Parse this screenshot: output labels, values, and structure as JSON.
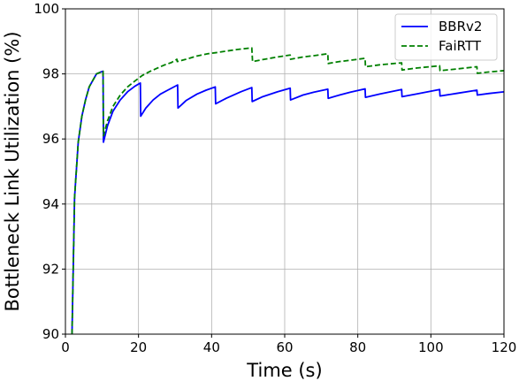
{
  "chart_data": {
    "type": "line",
    "xlabel": "Time (s)",
    "ylabel": "Bottleneck Link Utilization (%)",
    "xlim": [
      0,
      120
    ],
    "ylim": [
      90,
      100
    ],
    "xticks": [
      0,
      20,
      40,
      60,
      80,
      100,
      120
    ],
    "yticks": [
      90,
      92,
      94,
      96,
      98,
      100
    ],
    "grid": true,
    "legend_position": "top-right",
    "series": [
      {
        "name": "BBRv2",
        "color": "#0000ff",
        "style": "solid",
        "x": [
          1.8,
          2.5,
          3.5,
          4.5,
          5.5,
          6.5,
          7.5,
          8.5,
          9.5,
          10.3,
          10.4,
          11.5,
          13,
          15,
          17,
          19,
          20.5,
          20.6,
          22,
          24,
          26,
          28,
          30.7,
          30.8,
          33,
          36,
          38.5,
          41,
          41.1,
          44,
          48,
          51,
          51.1,
          54,
          58,
          61.5,
          61.6,
          65,
          68,
          71.8,
          71.9,
          75,
          78,
          82,
          82.1,
          86,
          92,
          92.1,
          96,
          102.4,
          102.5,
          107,
          112.6,
          112.7,
          116,
          120
        ],
        "y": [
          90.0,
          94.2,
          95.9,
          96.7,
          97.2,
          97.6,
          97.8,
          98.0,
          98.05,
          98.08,
          95.9,
          96.4,
          96.85,
          97.2,
          97.45,
          97.62,
          97.72,
          96.7,
          96.95,
          97.2,
          97.38,
          97.5,
          97.66,
          96.95,
          97.18,
          97.38,
          97.5,
          97.6,
          97.08,
          97.25,
          97.45,
          97.58,
          97.15,
          97.3,
          97.45,
          97.56,
          97.2,
          97.35,
          97.44,
          97.53,
          97.25,
          97.35,
          97.44,
          97.54,
          97.28,
          97.38,
          97.52,
          97.3,
          97.38,
          97.52,
          97.32,
          97.4,
          97.5,
          97.35,
          97.4,
          97.45
        ]
      },
      {
        "name": "FaiRTT",
        "color": "#008000",
        "style": "dashed",
        "x": [
          1.8,
          2.5,
          3.5,
          4.5,
          5.5,
          6.5,
          7.5,
          8.5,
          9.5,
          10.3,
          10.4,
          11.5,
          13,
          15,
          17,
          19,
          21,
          23,
          25,
          27,
          29,
          30.5,
          30.6,
          33,
          36,
          39,
          41,
          44,
          47,
          51,
          51.2,
          54,
          58,
          61.5,
          61.6,
          65,
          68,
          71.8,
          71.9,
          75,
          78,
          82,
          82.1,
          86,
          92,
          92.1,
          96,
          102.4,
          102.5,
          107,
          112.6,
          112.7,
          116,
          120
        ],
        "y": [
          90.0,
          94.2,
          95.9,
          96.7,
          97.2,
          97.6,
          97.8,
          98.0,
          98.05,
          98.08,
          96.1,
          96.55,
          97.0,
          97.35,
          97.6,
          97.78,
          97.95,
          98.07,
          98.17,
          98.27,
          98.35,
          98.45,
          98.38,
          98.45,
          98.55,
          98.62,
          98.65,
          98.7,
          98.75,
          98.8,
          98.38,
          98.44,
          98.52,
          98.58,
          98.45,
          98.52,
          98.56,
          98.62,
          98.32,
          98.38,
          98.42,
          98.48,
          98.22,
          98.28,
          98.34,
          98.12,
          98.18,
          98.25,
          98.1,
          98.15,
          98.22,
          98.02,
          98.06,
          98.1
        ]
      }
    ]
  }
}
